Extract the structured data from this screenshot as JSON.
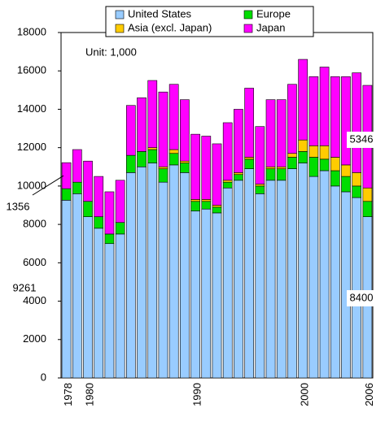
{
  "chart_data": {
    "type": "stacked-bar",
    "annotation": "Unit: 1,000",
    "categories": [
      "1978",
      null,
      "1980",
      null,
      null,
      null,
      null,
      null,
      null,
      null,
      null,
      null,
      "1990",
      null,
      null,
      null,
      null,
      null,
      null,
      null,
      null,
      null,
      "2000",
      null,
      null,
      null,
      null,
      null,
      "2006"
    ],
    "series": [
      {
        "name": "United States",
        "color": "#99ccff",
        "values": [
          9261,
          9600,
          8400,
          7800,
          7000,
          7500,
          10700,
          11000,
          11200,
          10200,
          11100,
          10700,
          8700,
          8800,
          8600,
          9900,
          10300,
          10900,
          9600,
          10300,
          10300,
          10900,
          11200,
          10500,
          10800,
          10000,
          9700,
          9400,
          8400
        ]
      },
      {
        "name": "Europe",
        "color": "#00dd00",
        "values": [
          600,
          600,
          800,
          600,
          500,
          600,
          900,
          800,
          700,
          700,
          600,
          500,
          500,
          400,
          300,
          300,
          300,
          500,
          400,
          600,
          600,
          600,
          600,
          1000,
          600,
          800,
          800,
          600,
          800
        ]
      },
      {
        "name": "Asia (excl. Japan)",
        "color": "#ffcc00",
        "values": [
          0,
          0,
          0,
          0,
          0,
          0,
          0,
          0,
          100,
          100,
          200,
          100,
          100,
          100,
          100,
          100,
          100,
          100,
          100,
          100,
          100,
          200,
          600,
          600,
          700,
          700,
          600,
          700,
          700
        ]
      },
      {
        "name": "Japan",
        "color": "#ff00ff",
        "values": [
          1356,
          1700,
          2100,
          2100,
          2200,
          2200,
          2600,
          2800,
          3500,
          3900,
          3400,
          3200,
          3400,
          3300,
          3200,
          3000,
          3300,
          3600,
          3000,
          3500,
          3500,
          3600,
          4200,
          3600,
          4100,
          4200,
          4600,
          5200,
          5346
        ]
      }
    ],
    "ylim": [
      0,
      18000
    ],
    "yticks": [
      0,
      2000,
      4000,
      6000,
      8000,
      10000,
      12000,
      14000,
      16000,
      18000
    ]
  }
}
